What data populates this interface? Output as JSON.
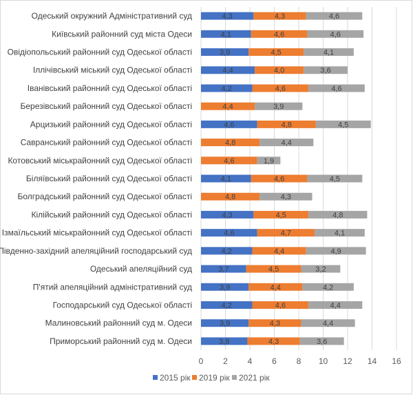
{
  "chart_data": {
    "type": "bar",
    "orientation": "horizontal",
    "stacked": true,
    "title": "",
    "xlabel": "",
    "ylabel": "",
    "xlim": [
      0,
      16
    ],
    "xticks": [
      "0",
      "2",
      "4",
      "6",
      "8",
      "10",
      "12",
      "14",
      "16"
    ],
    "grid": true,
    "legend_position": "bottom",
    "categories": [
      "Одеський окружний Адміністративний суд",
      "Київський районний суд міста Одеси",
      "Овідіопольський районний суд Одеської області",
      "Іллічівський міський суд Одеської області",
      "Іванівський районний суд Одеської області",
      "Березівський районний суд Одеської області",
      "Арцизький районний суд Одеської області",
      "Савранський районний суд Одеської області",
      "Котовський міськрайонний суд Одеської області",
      "Біляївський районний суд Одеської області",
      "Болградський районний суд Одеської області",
      "Кілійський районний суд Одеської області",
      "Ізмаїльський міськрайонний суд Одеської області",
      "Південно-західний апеляційний господарський суд",
      "Одеський апеляційний суд",
      "П'ятий апеляційний адміністративний суд",
      "Господарський суд Одеської області",
      "Малиновський районний суд м. Одеси",
      "Приморський районний суд м. Одеси"
    ],
    "series": [
      {
        "name": "2015 рік",
        "color": "#4472c4",
        "values": [
          4.3,
          4.1,
          3.9,
          4.4,
          4.2,
          null,
          4.6,
          null,
          null,
          4.1,
          null,
          4.3,
          4.6,
          4.2,
          3.7,
          3.9,
          4.2,
          3.9,
          3.8
        ],
        "labels": [
          "4,3",
          "4,1",
          "3,9",
          "4,4",
          "4,2",
          "",
          "4,6",
          "",
          "",
          "4,1",
          "",
          "4,3",
          "4,6",
          "4,2",
          "3,7",
          "3,9",
          "4,2",
          "3,9",
          "3,8"
        ]
      },
      {
        "name": "2019 рік",
        "color": "#ed7d31",
        "values": [
          4.3,
          4.6,
          4.5,
          4.0,
          4.6,
          4.4,
          4.8,
          4.8,
          4.6,
          4.6,
          4.8,
          4.5,
          4.7,
          4.4,
          4.5,
          4.4,
          4.6,
          4.3,
          4.3
        ],
        "labels": [
          "4,3",
          "4,6",
          "4,5",
          "4,0",
          "4,6",
          "4,4",
          "4,8",
          "4,8",
          "4,6",
          "4,6",
          "4,8",
          "4,5",
          "4,7",
          "4,4",
          "4,5",
          "4,4",
          "4,6",
          "4,3",
          "4,3"
        ]
      },
      {
        "name": "2021 рік",
        "color": "#a5a5a5",
        "values": [
          4.6,
          4.6,
          4.1,
          3.6,
          4.6,
          3.9,
          4.5,
          4.4,
          1.9,
          4.5,
          4.3,
          4.8,
          4.1,
          4.9,
          3.2,
          4.2,
          4.4,
          4.4,
          3.6
        ],
        "labels": [
          "4,6",
          "4,6",
          "4,1",
          "3,6",
          "4,6",
          "3,9",
          "4,5",
          "4,4",
          "1,9",
          "4,5",
          "4,3",
          "4,8",
          "4,1",
          "4,9",
          "3,2",
          "4,2",
          "4,4",
          "4,4",
          "3,6"
        ]
      }
    ]
  }
}
